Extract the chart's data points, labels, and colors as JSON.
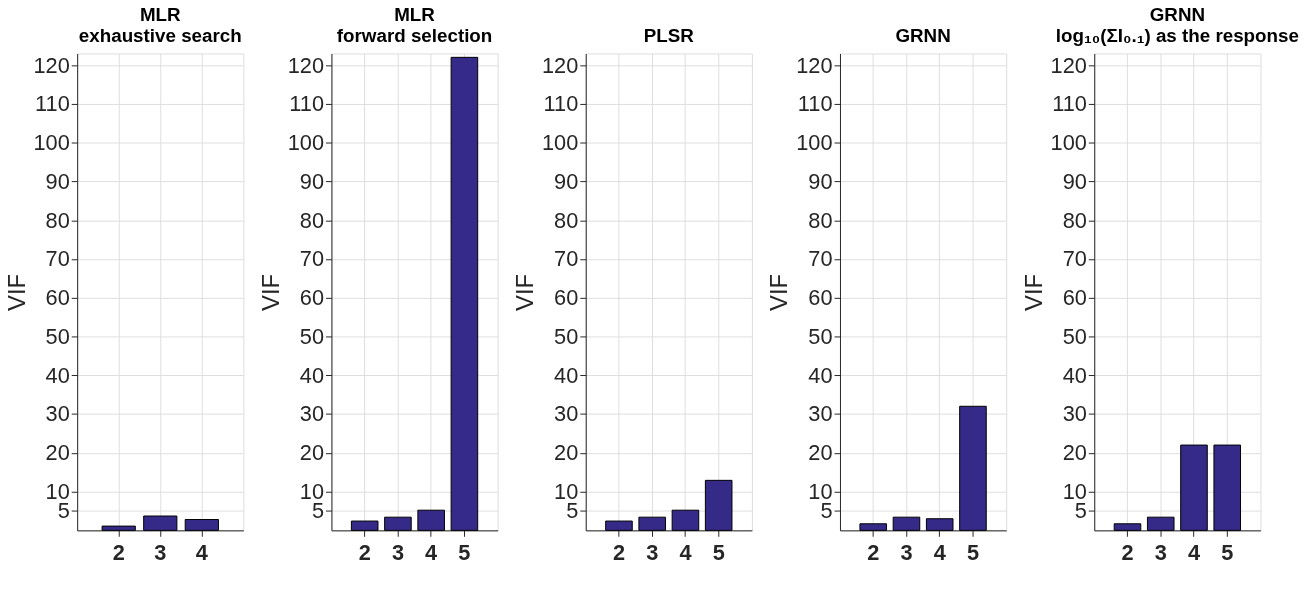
{
  "chart_data": [
    {
      "type": "bar",
      "title": "MLR\nexhaustive search",
      "ylabel": "VIF",
      "categories": [
        "2",
        "3",
        "4"
      ],
      "values": [
        1.1,
        3.7,
        2.8
      ],
      "color": "#352a87",
      "ylim": [
        0,
        123
      ],
      "yticks": [
        5,
        10,
        20,
        30,
        40,
        50,
        60,
        70,
        80,
        90,
        100,
        110,
        120
      ],
      "grid": true
    },
    {
      "type": "bar",
      "title": "MLR\nforward selection",
      "ylabel": "VIF",
      "categories": [
        "2",
        "3",
        "4",
        "5"
      ],
      "values": [
        2.4,
        3.4,
        5.2,
        122
      ],
      "color": "#352a87",
      "ylim": [
        0,
        123
      ],
      "yticks": [
        5,
        10,
        20,
        30,
        40,
        50,
        60,
        70,
        80,
        90,
        100,
        110,
        120
      ],
      "grid": true
    },
    {
      "type": "bar",
      "title": "PLSR",
      "ylabel": "VIF",
      "categories": [
        "2",
        "3",
        "4",
        "5"
      ],
      "values": [
        2.4,
        3.4,
        5.2,
        12.9
      ],
      "color": "#352a87",
      "ylim": [
        0,
        123
      ],
      "yticks": [
        5,
        10,
        20,
        30,
        40,
        50,
        60,
        70,
        80,
        90,
        100,
        110,
        120
      ],
      "grid": true
    },
    {
      "type": "bar",
      "title": "GRNN",
      "ylabel": "VIF",
      "categories": [
        "2",
        "3",
        "4",
        "5"
      ],
      "values": [
        1.7,
        3.4,
        3.0,
        32
      ],
      "color": "#352a87",
      "ylim": [
        0,
        123
      ],
      "yticks": [
        5,
        10,
        20,
        30,
        40,
        50,
        60,
        70,
        80,
        90,
        100,
        110,
        120
      ],
      "grid": true
    },
    {
      "type": "bar",
      "title": "GRNN\nlog₁₀(ΣI₀.₁) as the response",
      "ylabel": "VIF",
      "categories": [
        "2",
        "3",
        "4",
        "5"
      ],
      "values": [
        1.7,
        3.4,
        22,
        22
      ],
      "color": "#352a87",
      "ylim": [
        0,
        123
      ],
      "yticks": [
        5,
        10,
        20,
        30,
        40,
        50,
        60,
        70,
        80,
        90,
        100,
        110,
        120
      ],
      "grid": true
    }
  ]
}
